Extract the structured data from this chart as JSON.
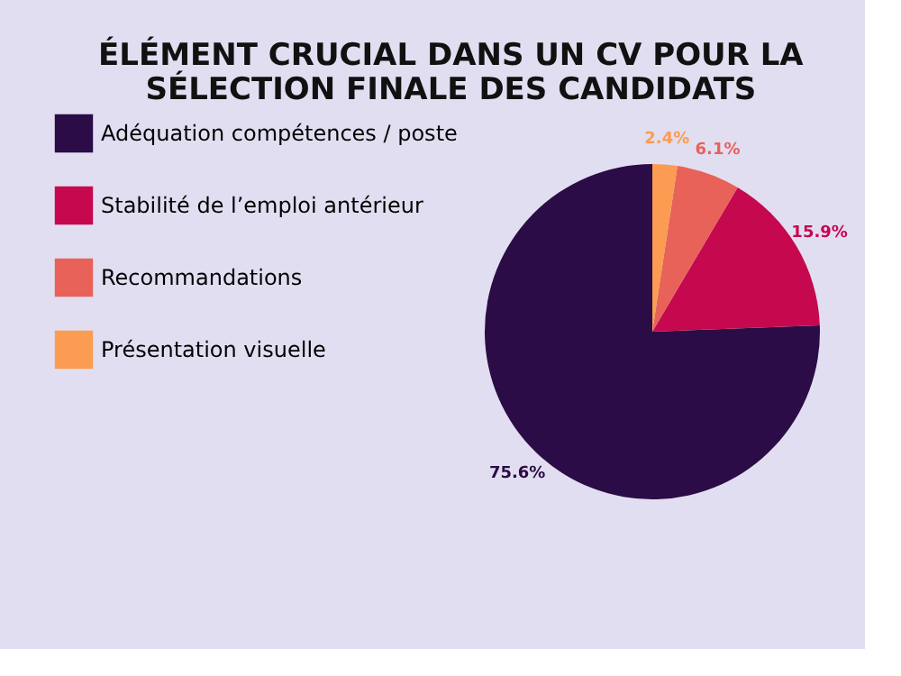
{
  "chart_data": {
    "type": "pie",
    "title": [
      "ÉLÉMENT CRUCIAL DANS UN CV POUR LA",
      "SÉLECTION FINALE DES CANDIDATS"
    ],
    "categories": [
      "Adéquation compétences / poste",
      "Stabilité de l’emploi antérieur",
      "Recommandations",
      "Présentation visuelle"
    ],
    "values": [
      75.6,
      15.9,
      6.1,
      2.4
    ],
    "colors": [
      "#2b0c46",
      "#c6084e",
      "#e8625a",
      "#fb9c52"
    ],
    "value_labels": [
      "75.6%",
      "15.9%",
      "6.1%",
      "2.4%"
    ],
    "legend": "left"
  }
}
